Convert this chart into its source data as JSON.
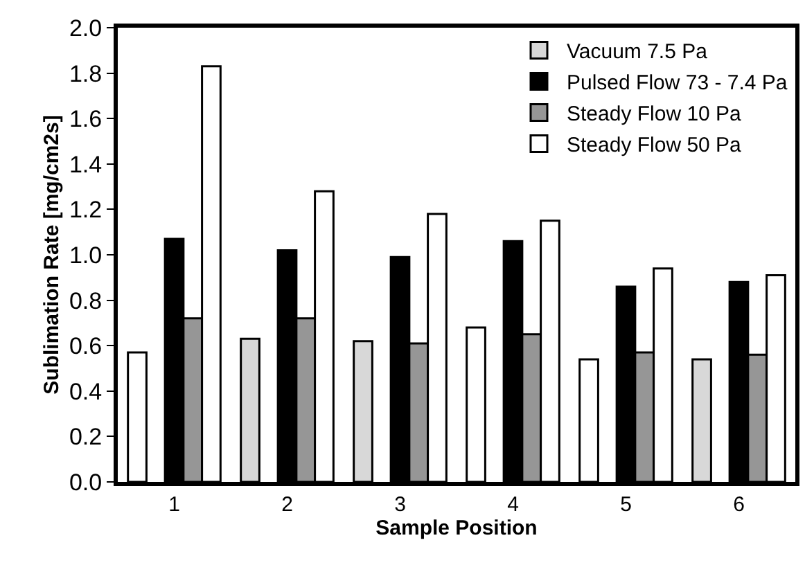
{
  "chart_data": {
    "type": "bar",
    "xlabel": "Sample Position",
    "ylabel": "Sublimation Rate [mg/cm2s]",
    "categories": [
      "1",
      "2",
      "3",
      "4",
      "5",
      "6"
    ],
    "series": [
      {
        "name": "Vacuum 7.5 Pa",
        "color": "#d8d8d8",
        "colors": [
          "#ffffff",
          "#d8d8d8",
          "#d8d8d8",
          "#ffffff",
          "#ffffff",
          "#d8d8d8"
        ],
        "values": [
          0.57,
          0.63,
          0.62,
          0.68,
          0.54,
          0.54
        ]
      },
      {
        "name": "Pulsed Flow 73 - 7.4 Pa",
        "color": "#000000",
        "values": [
          1.07,
          1.02,
          0.99,
          1.06,
          0.86,
          0.88
        ]
      },
      {
        "name": "Steady Flow 10 Pa",
        "color": "#969696",
        "values": [
          0.72,
          0.72,
          0.61,
          0.65,
          0.57,
          0.56
        ]
      },
      {
        "name": "Steady Flow 50 Pa",
        "color": "#ffffff",
        "values": [
          1.83,
          1.28,
          1.18,
          1.15,
          0.94,
          0.91
        ]
      }
    ],
    "ylim": [
      0,
      2.0
    ],
    "yticks": [
      {
        "value": 0,
        "label": "0.0"
      },
      0.2,
      0.4,
      0.6,
      0.8,
      {
        "value": 1,
        "label": "1.0"
      },
      1.2,
      1.4,
      1.6,
      1.8,
      {
        "value": 2,
        "label": "2.0"
      }
    ],
    "grid": false,
    "legend": "top right"
  }
}
